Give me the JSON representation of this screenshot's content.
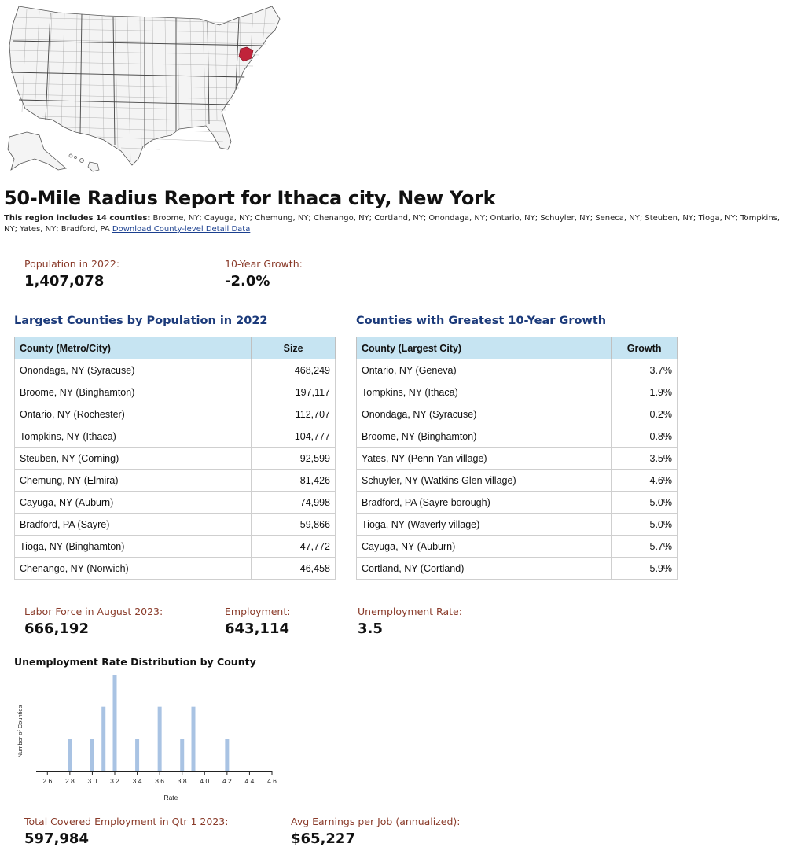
{
  "report": {
    "title": "50-Mile Radius Report for Ithaca city, New York",
    "region_intro": "This region includes 14 counties:",
    "region_counties": " Broome, NY; Cayuga, NY; Chemung, NY; Chenango, NY; Cortland, NY; Onondaga, NY; Ontario, NY; Schuyler, NY; Seneca, NY; Steuben, NY; Tioga, NY; Tompkins, NY; Yates, NY; Bradford, PA ",
    "download_link": "Download County-level Detail Data"
  },
  "population": {
    "label": "Population in 2022:",
    "value": "1,407,078",
    "growth_label": "10-Year Growth:",
    "growth_value": "-2.0%"
  },
  "largest_counties": {
    "title": "Largest Counties by Population in 2022",
    "headers": [
      "County (Metro/City)",
      "Size"
    ],
    "rows": [
      [
        "Onondaga, NY (Syracuse)",
        "468,249"
      ],
      [
        "Broome, NY (Binghamton)",
        "197,117"
      ],
      [
        "Ontario, NY (Rochester)",
        "112,707"
      ],
      [
        "Tompkins, NY (Ithaca)",
        "104,777"
      ],
      [
        "Steuben, NY (Corning)",
        "92,599"
      ],
      [
        "Chemung, NY (Elmira)",
        "81,426"
      ],
      [
        "Cayuga, NY (Auburn)",
        "74,998"
      ],
      [
        "Bradford, PA (Sayre)",
        "59,866"
      ],
      [
        "Tioga, NY (Binghamton)",
        "47,772"
      ],
      [
        "Chenango, NY (Norwich)",
        "46,458"
      ]
    ]
  },
  "growth_counties": {
    "title": "Counties with Greatest 10-Year Growth",
    "headers": [
      "County (Largest City)",
      "Growth"
    ],
    "rows": [
      [
        "Ontario, NY (Geneva)",
        "3.7%"
      ],
      [
        "Tompkins, NY (Ithaca)",
        "1.9%"
      ],
      [
        "Onondaga, NY (Syracuse)",
        "0.2%"
      ],
      [
        "Broome, NY (Binghamton)",
        "-0.8%"
      ],
      [
        "Yates, NY (Penn Yan village)",
        "-3.5%"
      ],
      [
        "Schuyler, NY (Watkins Glen village)",
        "-4.6%"
      ],
      [
        "Bradford, PA (Sayre borough)",
        "-5.0%"
      ],
      [
        "Tioga, NY (Waverly village)",
        "-5.0%"
      ],
      [
        "Cayuga, NY (Auburn)",
        "-5.7%"
      ],
      [
        "Cortland, NY (Cortland)",
        "-5.9%"
      ]
    ]
  },
  "labor": {
    "labor_force_label": "Labor Force in August 2023:",
    "labor_force_value": "666,192",
    "employment_label": "Employment:",
    "employment_value": "643,114",
    "unemployment_label": "Unemployment Rate:",
    "unemployment_value": "3.5"
  },
  "chart_data": {
    "type": "bar",
    "title": "Unemployment Rate Distribution by County",
    "xlabel": "Rate",
    "ylabel": "Number of Counties",
    "xlim": [
      2.5,
      4.6
    ],
    "ticks": [
      "2.6",
      "2.8",
      "3.0",
      "3.2",
      "3.4",
      "3.6",
      "3.8",
      "4.0",
      "4.2",
      "4.4",
      "4.6"
    ],
    "x": [
      2.8,
      3.0,
      3.1,
      3.2,
      3.4,
      3.6,
      3.8,
      3.9,
      4.2
    ],
    "values": [
      1,
      1,
      2,
      3,
      1,
      2,
      1,
      2,
      1
    ],
    "ylim": [
      0,
      3
    ],
    "bar_color": "#a9c3e3",
    "grid": false
  },
  "qcew": {
    "employment_label": "Total Covered Employment in Qtr 1 2023:",
    "employment_value": "597,984",
    "earnings_label": "Avg Earnings per Job (annualized):",
    "earnings_value": "$65,227"
  },
  "map": {
    "highlight_color": "#c0233a",
    "icon": "us-county-map"
  }
}
